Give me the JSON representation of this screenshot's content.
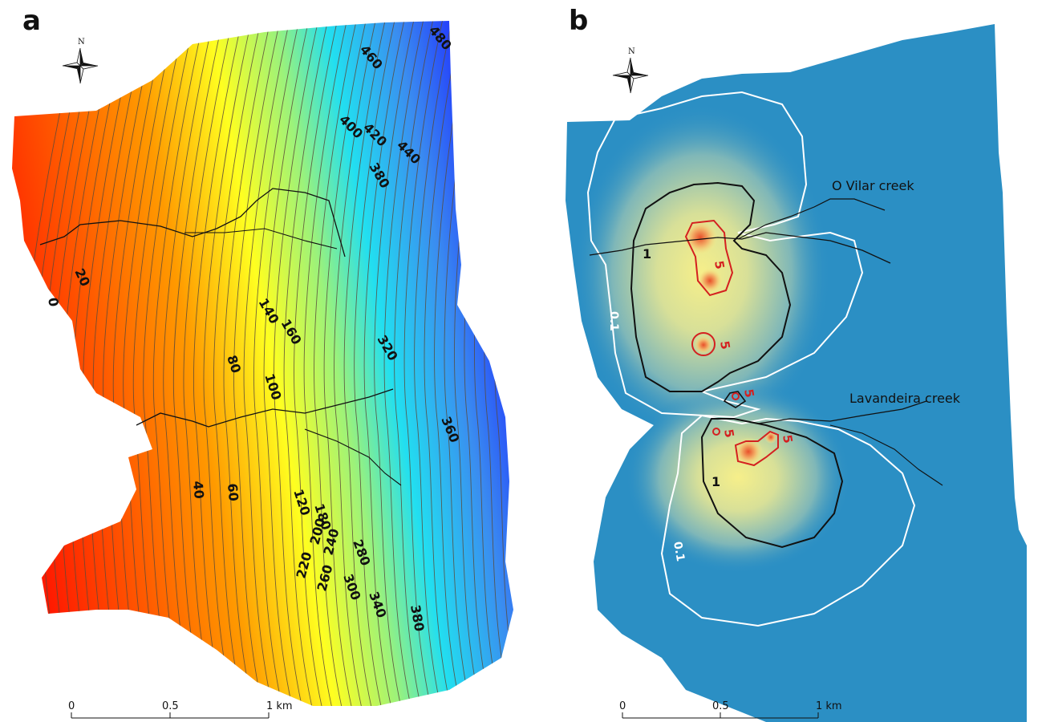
{
  "panel_a": {
    "letter": "a",
    "north_label": "N",
    "contour_labels": [
      "0",
      "20",
      "40",
      "60",
      "80",
      "100",
      "120",
      "140",
      "160",
      "180",
      "200",
      "220",
      "240",
      "260",
      "280",
      "300",
      "320",
      "340",
      "360",
      "380",
      "380",
      "400",
      "420",
      "440",
      "460",
      "480"
    ],
    "scale": {
      "ticks": [
        "0",
        "0.5",
        "1 km"
      ]
    },
    "colors": {
      "low": "#ff1a00",
      "mid": "#ffff00",
      "high": "#1a1aff"
    }
  },
  "panel_b": {
    "letter": "b",
    "north_label": "N",
    "creeks": [
      "O Vilar creek",
      "Lavandeira creek"
    ],
    "contour_labels": {
      "white": [
        "0.1",
        "0.1"
      ],
      "black": [
        "1",
        "1"
      ],
      "red": [
        "5",
        "5",
        "5",
        "5",
        "5"
      ]
    },
    "scale": {
      "ticks": [
        "0",
        "0.5",
        "1 km"
      ]
    },
    "colors": {
      "background": "#2b8fc4",
      "halo": "#f2ec9a",
      "hotspot": "#e8502a",
      "contour_red": "#d42020"
    }
  }
}
